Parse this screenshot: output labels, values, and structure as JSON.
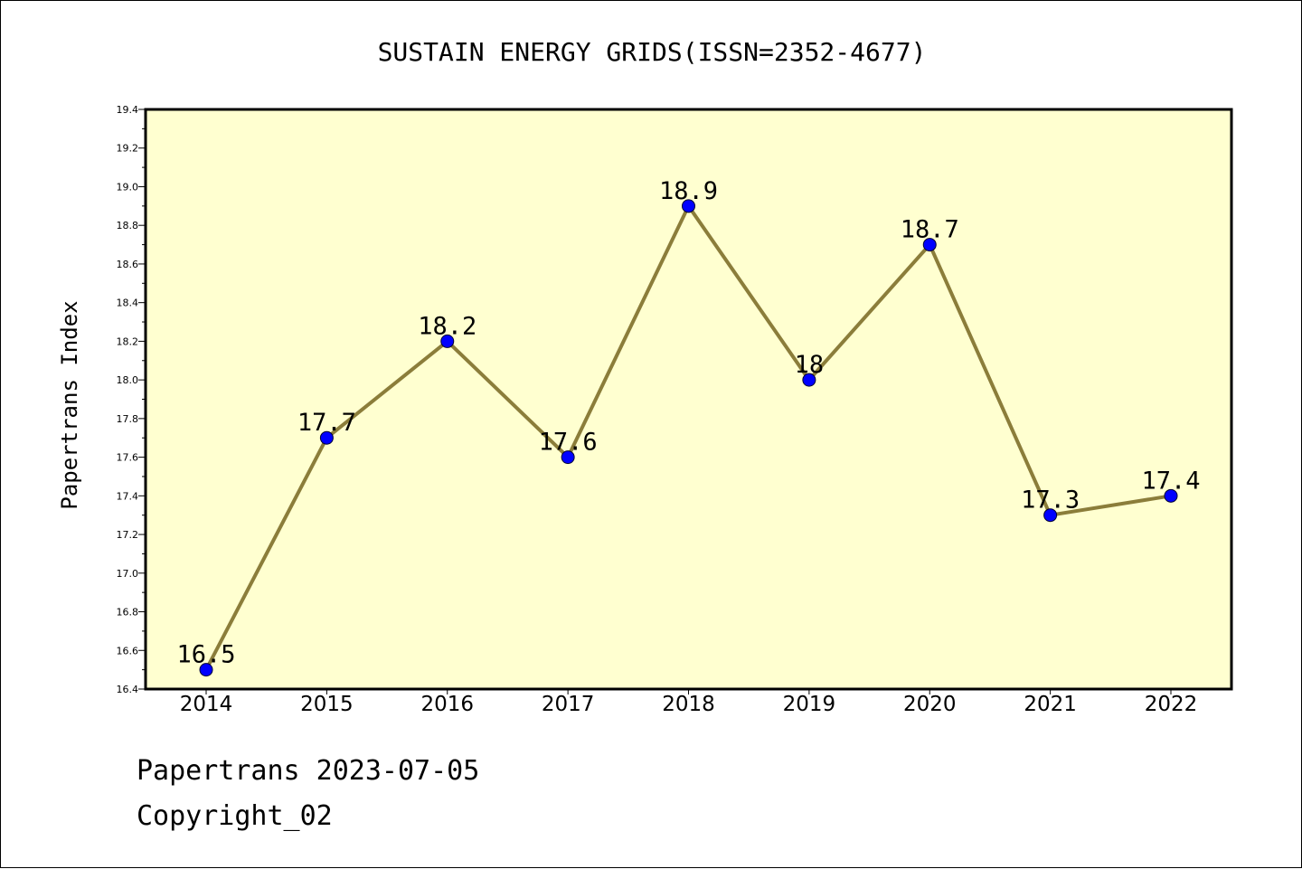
{
  "chart_data": {
    "type": "line",
    "title": "SUSTAIN ENERGY GRIDS(ISSN=2352-4677)",
    "xlabel": "",
    "ylabel": "Papertrans Index",
    "categories": [
      "2014",
      "2015",
      "2016",
      "2017",
      "2018",
      "2019",
      "2020",
      "2021",
      "2022"
    ],
    "values": [
      16.5,
      17.7,
      18.2,
      17.6,
      18.9,
      18.0,
      18.7,
      17.3,
      17.4
    ],
    "data_labels": [
      "16.5",
      "17.7",
      "18.2",
      "17.6",
      "18.9",
      "18",
      "18.7",
      "17.3",
      "17.4"
    ],
    "ylim": [
      16.4,
      19.4
    ],
    "yticks": [
      "16.4",
      "16.6",
      "16.8",
      "17.0",
      "17.2",
      "17.4",
      "17.6",
      "17.8",
      "18.0",
      "18.2",
      "18.4",
      "18.6",
      "18.8",
      "19.0",
      "19.2",
      "19.4"
    ],
    "grid": false,
    "legend": "none",
    "colors": {
      "line": "#8B7D3A",
      "marker": "#0000FF",
      "plot_background": "#FFFFD0"
    }
  },
  "footer": {
    "line1": "Papertrans 2023-07-05",
    "line2": "Copyright_02"
  }
}
